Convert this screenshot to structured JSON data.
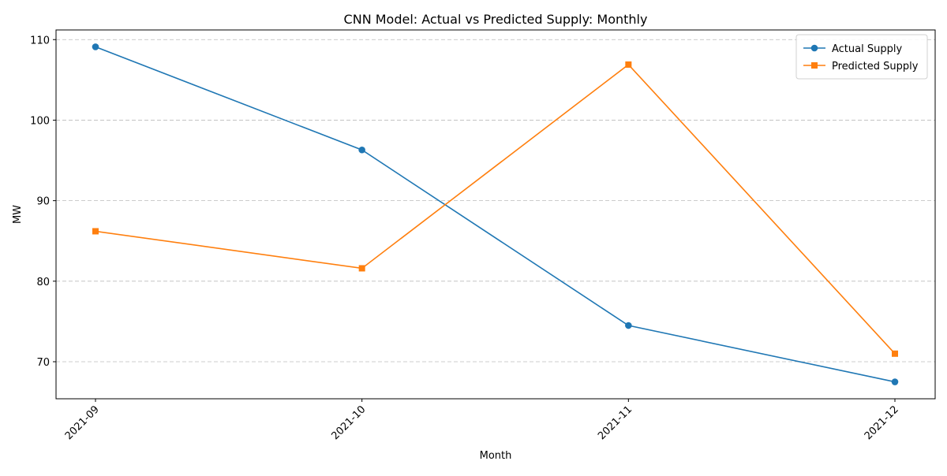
{
  "chart_data": {
    "type": "line",
    "title": "CNN Model: Actual vs Predicted Supply: Monthly",
    "xlabel": "Month",
    "ylabel": "MW",
    "categories": [
      "2021-09",
      "2021-10",
      "2021-11",
      "2021-12"
    ],
    "ylim": [
      65.4,
      111.2
    ],
    "yticks": [
      70,
      80,
      90,
      100,
      110
    ],
    "grid": "y-dashed",
    "legend_position": "top-right",
    "series": [
      {
        "name": "Actual Supply",
        "values": [
          109.1,
          96.3,
          74.5,
          67.5
        ],
        "color": "#1f77b4",
        "marker": "circle"
      },
      {
        "name": "Predicted Supply",
        "values": [
          86.2,
          81.6,
          106.9,
          71.0
        ],
        "color": "#ff7f0e",
        "marker": "square"
      }
    ]
  }
}
